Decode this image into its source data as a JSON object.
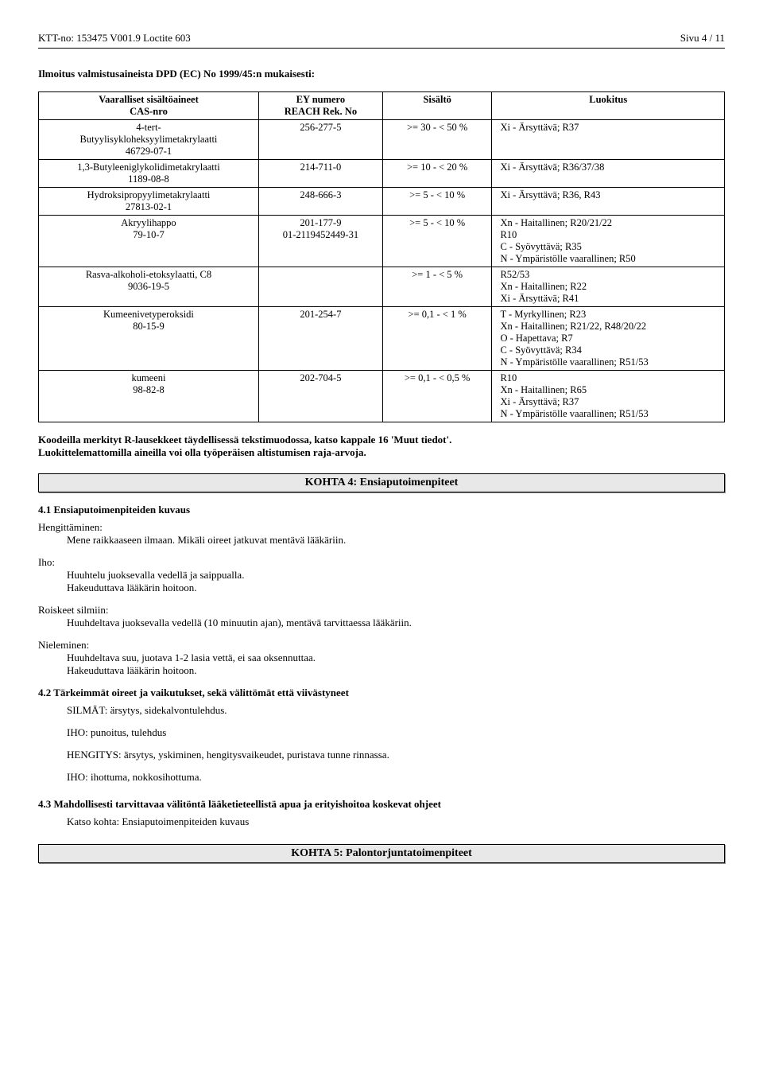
{
  "header": {
    "left": "KTT-no: 153475   V001.9    Loctite 603",
    "right": "Sivu 4 / 11"
  },
  "notice_title": "Ilmoitus valmistusaineista DPD (EC) No 1999/45:n mukaisesti:",
  "table": {
    "columns": [
      "Vaaralliset sisältöaineet\nCAS-nro",
      "EY numero\nREACH Rek. No",
      "Sisältö",
      "Luokitus"
    ],
    "rows": [
      {
        "c0": "4-tert-\nButyylisykloheksyylimetakrylaatti\n46729-07-1",
        "c1": "256-277-5",
        "c2": ">=  30 - <  50 %",
        "c3": "Xi - Ärsyttävä;  R37"
      },
      {
        "c0": "1,3-Butyleeniglykolidimetakrylaatti\n1189-08-8",
        "c1": "214-711-0",
        "c2": ">=  10 - <  20 %",
        "c3": "Xi - Ärsyttävä;  R36/37/38"
      },
      {
        "c0": "Hydroksipropyylimetakrylaatti\n27813-02-1",
        "c1": "248-666-3",
        "c2": ">=   5 - <  10 %",
        "c3": "Xi - Ärsyttävä;  R36, R43"
      },
      {
        "c0": "Akryylihappo\n79-10-7",
        "c1": "201-177-9\n01-2119452449-31",
        "c2": ">=   5 - <  10 %",
        "c3": "Xn - Haitallinen;  R20/21/22\nR10\nC - Syövyttävä;  R35\nN - Ympäristölle vaarallinen;  R50"
      },
      {
        "c0": "Rasva-alkoholi-etoksylaatti, C8\n9036-19-5",
        "c1": "",
        "c2": ">=   1 - <   5  %",
        "c3": "R52/53\nXn - Haitallinen;  R22\nXi - Ärsyttävä;  R41"
      },
      {
        "c0": "Kumeenivetyperoksidi\n80-15-9",
        "c1": "201-254-7",
        "c2": ">=   0,1 - <   1  %",
        "c3": "T - Myrkyllinen;  R23\nXn - Haitallinen;  R21/22, R48/20/22\nO - Hapettava;  R7\nC - Syövyttävä;  R34\nN - Ympäristölle vaarallinen;  R51/53"
      },
      {
        "c0": "kumeeni\n98-82-8",
        "c1": "202-704-5",
        "c2": ">=   0,1 - <   0,5 %",
        "c3": "R10\nXn - Haitallinen;  R65\nXi - Ärsyttävä;  R37\nN - Ympäristölle vaarallinen;  R51/53"
      }
    ]
  },
  "codes_note": "Koodeilla merkityt R-lausekkeet täydellisessä tekstimuodossa, katso kappale 16 'Muut tiedot'.\nLuokittelemattomilla aineilla voi olla työperäisen altistumisen raja-arvoja.",
  "section4": {
    "title": "KOHTA 4: Ensiaputoimenpiteet",
    "s41": "4.1 Ensiaputoimenpiteiden kuvaus",
    "inhale_label": "Hengittäminen:",
    "inhale_text": "Mene raikkaaseen ilmaan. Mikäli oireet jatkuvat mentävä lääkäriin.",
    "skin_label": "Iho:",
    "skin_text": "Huuhtelu juoksevalla vedellä ja saippualla.\nHakeuduttava lääkärin hoitoon.",
    "eyes_label": "Roiskeet silmiin:",
    "eyes_text": "Huuhdeltava juoksevalla vedellä (10 minuutin ajan), mentävä tarvittaessa lääkäriin.",
    "ingest_label": "Nieleminen:",
    "ingest_text": "Huuhdeltava suu, juotava 1-2 lasia vettä, ei saa oksennuttaa.\nHakeuduttava lääkärin hoitoon.",
    "s42_title": "4.2 Tärkeimmät oireet ja vaikutukset, sekä välittömät että viivästyneet",
    "s42_eyes": "SILMÄT: ärsytys, sidekalvontulehdus.",
    "s42_skin": "IHO: punoitus, tulehdus",
    "s42_breath": "HENGITYS: ärsytys, yskiminen, hengitysvaikeudet, puristava tunne rinnassa.",
    "s42_skin2": "IHO: ihottuma, nokkosihottuma.",
    "s43_title": "4.3 Mahdollisesti tarvittavaa välitöntä lääketieteellistä apua ja erityishoitoa koskevat ohjeet",
    "s43_text": "Katso kohta: Ensiaputoimenpiteiden kuvaus"
  },
  "section5_title": "KOHTA 5: Palontorjuntatoimenpiteet"
}
